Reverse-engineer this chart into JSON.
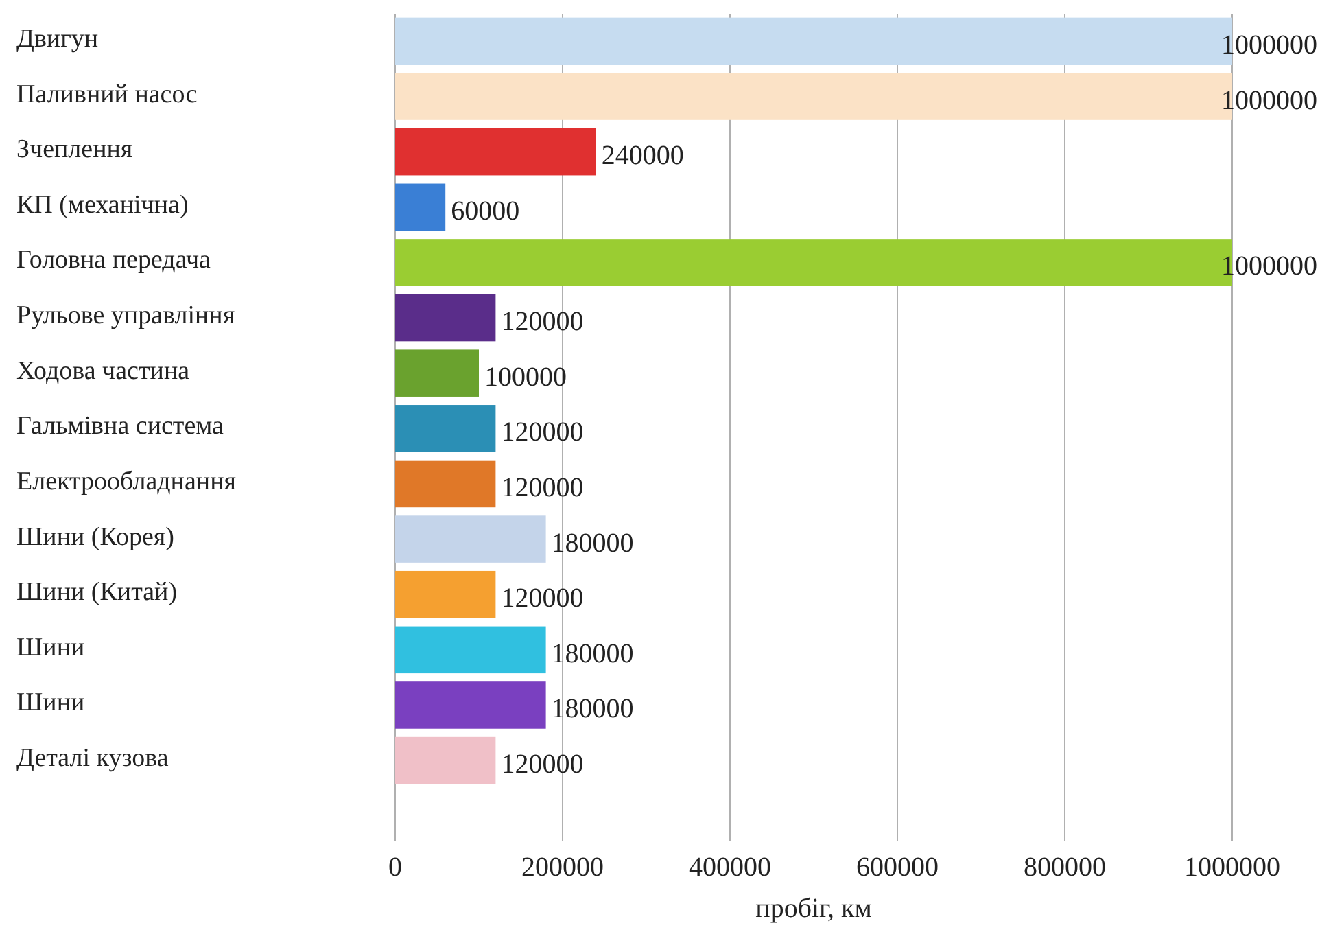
{
  "chart_data": {
    "type": "bar",
    "orientation": "horizontal",
    "xlabel": "пробіг, км",
    "categories": [
      "Двигун",
      "Паливний насос",
      "Зчеплення",
      "КП (механічна)",
      "Головна передача",
      "Рульове управління",
      "Ходова частина",
      "Гальмівна система",
      "Електрообладнання",
      "Шини (Корея)",
      "Шини (Китай)",
      "Шини",
      "Шини",
      "Деталі кузова"
    ],
    "values": [
      1000000,
      1000000,
      240000,
      60000,
      1000000,
      120000,
      100000,
      120000,
      120000,
      180000,
      120000,
      180000,
      180000,
      120000
    ],
    "colors": [
      "#c6dcf0",
      "#fbe2c6",
      "#e03030",
      "#3a7fd5",
      "#9acd32",
      "#5a2d8a",
      "#6aa22e",
      "#2b8fb5",
      "#e07828",
      "#c4d4ea",
      "#f5a030",
      "#30c0e0",
      "#7a40c0",
      "#f0c0c8"
    ],
    "xlim": [
      0,
      1000000
    ],
    "xticks": [
      0,
      200000,
      400000,
      600000,
      800000,
      1000000
    ],
    "grid": "x",
    "data_labels": true
  }
}
